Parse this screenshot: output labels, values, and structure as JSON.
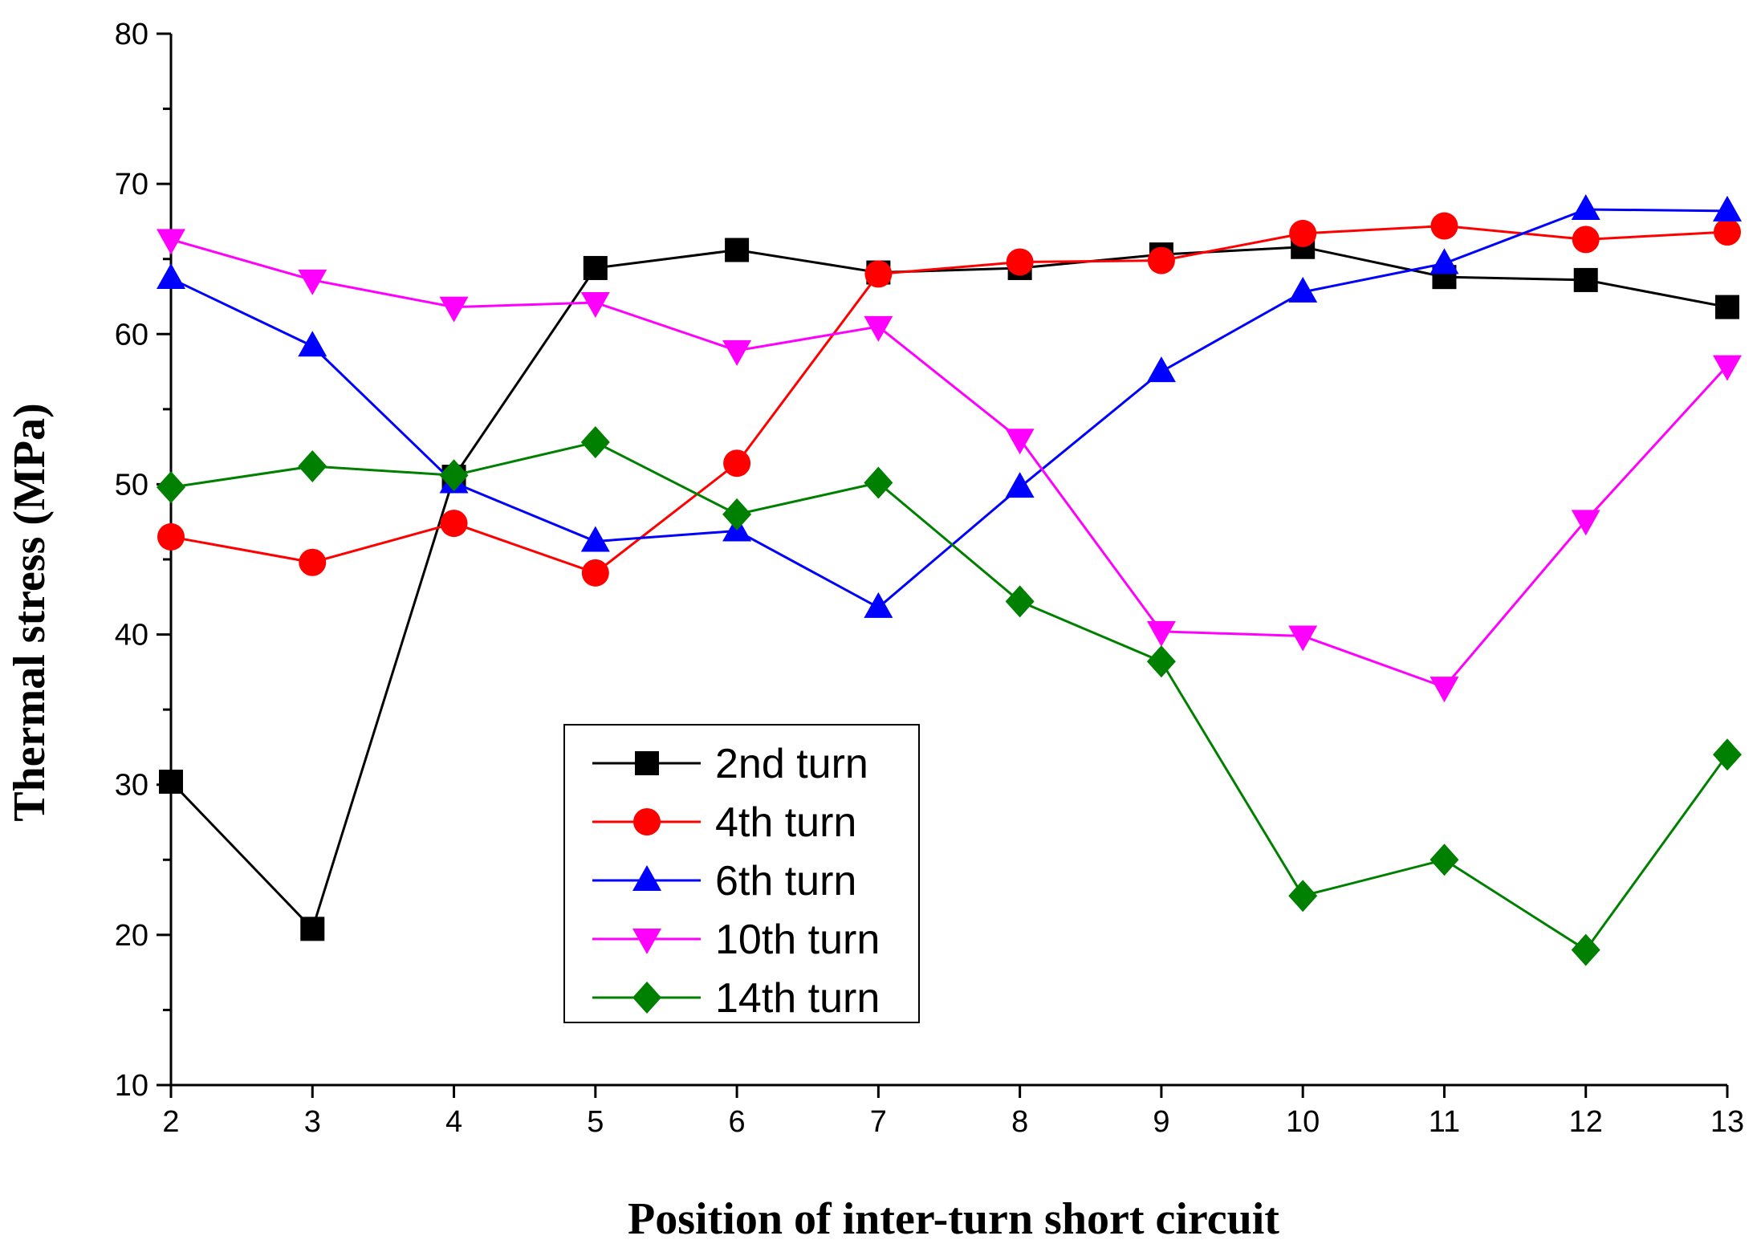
{
  "chart_data": {
    "type": "line",
    "title": "",
    "xlabel": "Position of inter-turn short circuit",
    "ylabel": "Thermal stress (MPa)",
    "xlim": [
      2,
      13
    ],
    "ylim": [
      10,
      80
    ],
    "x": [
      2,
      3,
      4,
      5,
      6,
      7,
      8,
      9,
      10,
      11,
      12,
      13
    ],
    "xticks": [
      "2",
      "3",
      "4",
      "5",
      "6",
      "7",
      "8",
      "9",
      "10",
      "11",
      "12",
      "13"
    ],
    "yticks": [
      "10",
      "20",
      "30",
      "40",
      "50",
      "60",
      "70",
      "80"
    ],
    "grid": false,
    "legend_position": "bottom-center",
    "series": [
      {
        "name": "2nd turn",
        "color": "#000000",
        "marker": "square",
        "values": [
          30.2,
          20.4,
          50.5,
          64.4,
          65.6,
          64.1,
          64.4,
          65.3,
          65.8,
          63.8,
          63.6,
          61.8
        ]
      },
      {
        "name": "4th turn",
        "color": "#ff0000",
        "marker": "circle",
        "values": [
          46.5,
          44.8,
          47.4,
          44.1,
          51.4,
          64.0,
          64.8,
          64.9,
          66.7,
          67.2,
          66.3,
          66.8
        ]
      },
      {
        "name": "6th turn",
        "color": "#0000ff",
        "marker": "triangle-up",
        "values": [
          63.7,
          59.2,
          50.1,
          46.2,
          46.9,
          41.8,
          49.8,
          57.5,
          62.8,
          64.7,
          68.3,
          68.2
        ]
      },
      {
        "name": "10th turn",
        "color": "#ff00ff",
        "marker": "triangle-down",
        "values": [
          66.3,
          63.6,
          61.8,
          62.1,
          58.9,
          60.5,
          53.0,
          40.2,
          39.9,
          36.5,
          47.6,
          57.9
        ]
      },
      {
        "name": "14th turn",
        "color": "#008000",
        "marker": "diamond",
        "values": [
          49.8,
          51.2,
          50.6,
          52.8,
          48.0,
          50.1,
          42.2,
          38.2,
          22.6,
          25.0,
          19.0,
          32.0
        ]
      }
    ]
  }
}
